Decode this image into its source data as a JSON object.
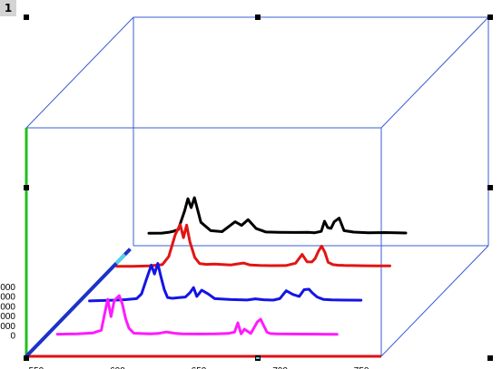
{
  "layer_badge": "1",
  "colors": {
    "frame": "#3a5cd6",
    "y_axis": "#1fbf1f",
    "x_axis": "#e01010",
    "z_axis": "#1c32c8",
    "z_axis_highlight": "#4fd2e8",
    "handle": "#000000"
  },
  "chart_data": {
    "type": "line",
    "projection": "3d-waterfall",
    "title": "",
    "xlabel": "",
    "ylabel": "",
    "x_ticks": [
      "550",
      "600",
      "650",
      "700",
      "750"
    ],
    "y_ticks": [
      "0",
      "000",
      "000",
      "000",
      "000",
      "000"
    ],
    "xlim": [
      540,
      765
    ],
    "ylim": [
      -3000,
      47000
    ],
    "grid": false,
    "legend": "none",
    "series": [
      {
        "color": "#ff1aff",
        "depth": 0,
        "x": [
          563,
          575,
          585,
          590,
          592,
          594,
          596,
          598,
          601,
          603,
          605,
          607,
          610,
          615,
          620,
          625,
          630,
          633,
          636,
          640,
          650,
          660,
          668,
          672,
          674,
          676,
          678,
          682,
          686,
          688,
          690,
          692,
          694,
          698,
          705,
          715,
          725,
          735
        ],
        "y": [
          1200,
          1600,
          2400,
          5000,
          20000,
          34500,
          18000,
          33500,
          38000,
          30000,
          16000,
          7000,
          2200,
          1800,
          1600,
          1900,
          3300,
          2600,
          1900,
          1600,
          1400,
          1500,
          1900,
          3200,
          12000,
          1600,
          6000,
          2000,
          13000,
          15500,
          9000,
          3000,
          1800,
          1500,
          1400,
          1300,
          1200,
          1100
        ]
      },
      {
        "color": "#1414e6",
        "depth": 1,
        "x": [
          563,
          575,
          585,
          592,
          595,
          598,
          601,
          603,
          605,
          607,
          609,
          611,
          614,
          618,
          622,
          625,
          627,
          629,
          632,
          636,
          640,
          650,
          660,
          665,
          670,
          676,
          680,
          684,
          688,
          692,
          695,
          698,
          700,
          703,
          707,
          712,
          720,
          730
        ],
        "y": [
          1300,
          1800,
          2500,
          3500,
          8000,
          22000,
          35500,
          27000,
          37000,
          24000,
          12000,
          4500,
          3800,
          4500,
          5000,
          9500,
          14000,
          5500,
          11500,
          8000,
          3500,
          2600,
          2200,
          3300,
          2400,
          2100,
          3500,
          11000,
          7500,
          5500,
          12000,
          12500,
          9000,
          5000,
          2700,
          2300,
          2100,
          2000
        ]
      },
      {
        "color": "#e31414",
        "depth": 2,
        "x": [
          560,
          570,
          580,
          588,
          592,
          596,
          599,
          601,
          603,
          605,
          608,
          611,
          615,
          620,
          630,
          638,
          642,
          648,
          655,
          664,
          670,
          674,
          677,
          680,
          682,
          684,
          686,
          688,
          690,
          693,
          696,
          700,
          705,
          712,
          720,
          728
        ],
        "y": [
          2600,
          2700,
          3100,
          4200,
          12000,
          33000,
          42500,
          30000,
          42000,
          26000,
          11000,
          5200,
          4500,
          4800,
          3900,
          5800,
          3900,
          3500,
          3300,
          3400,
          5600,
          14000,
          7000,
          6800,
          10000,
          17000,
          22000,
          16000,
          6500,
          4200,
          3700,
          3500,
          3400,
          3200,
          3100,
          3000
        ]
      },
      {
        "color": "#000000",
        "depth": 3,
        "x": [
          560,
          568,
          572,
          575,
          578,
          582,
          584,
          586,
          588,
          592,
          598,
          605,
          613,
          617,
          621,
          626,
          632,
          640,
          650,
          658,
          662,
          666,
          668,
          670,
          672,
          674,
          677,
          680,
          686,
          695,
          705,
          712,
          718
        ],
        "y": [
          2600,
          2700,
          3400,
          4400,
          6000,
          24000,
          35500,
          27000,
          36500,
          13000,
          5000,
          4100,
          13500,
          10000,
          15500,
          7000,
          3700,
          3500,
          3300,
          3500,
          3000,
          4300,
          14000,
          8000,
          7200,
          13500,
          17000,
          5000,
          3600,
          3000,
          3200,
          2900,
          2800
        ]
      }
    ]
  }
}
